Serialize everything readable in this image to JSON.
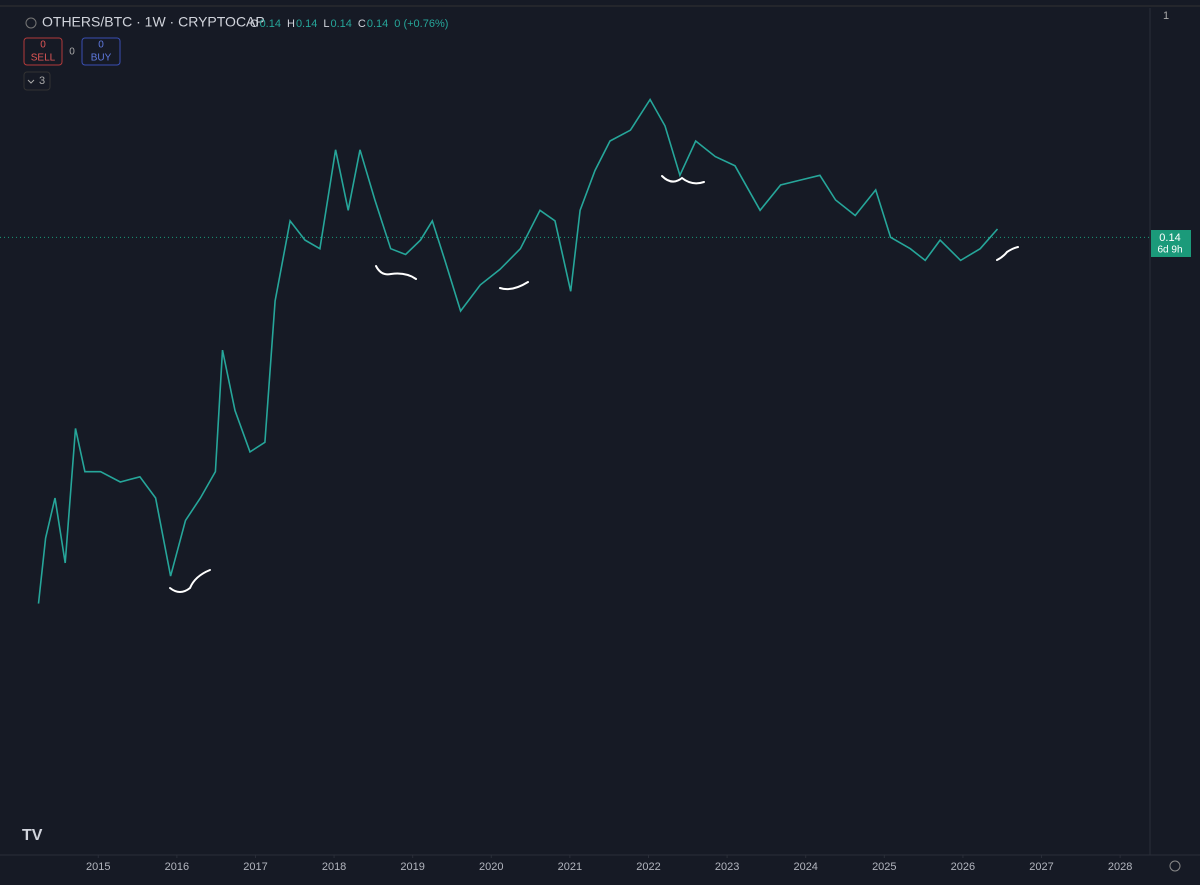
{
  "header": {
    "symbol": "OTHERS/BTC · 1W · CRYPTOCAP",
    "ohlc": [
      {
        "key": "O",
        "value": "0.14"
      },
      {
        "key": "H",
        "value": "0.14"
      },
      {
        "key": "L",
        "value": "0.14"
      },
      {
        "key": "C",
        "value": "0.14"
      }
    ],
    "change": "0 (+0.76%)"
  },
  "trade": {
    "sell_qty": "0",
    "sell": "SELL",
    "spread": "0",
    "buy_qty": "0",
    "buy": "BUY"
  },
  "indicators": "3",
  "corner": "1",
  "countdown": "6d 9h",
  "chart_data": {
    "type": "line",
    "log": true,
    "color": "#26a69a",
    "last_price": 0.14,
    "x": [
      2014.24,
      2014.33,
      2014.45,
      2014.58,
      2014.71,
      2014.83,
      2015.03,
      2015.28,
      2015.53,
      2015.73,
      2015.92,
      2016.11,
      2016.3,
      2016.49,
      2016.58,
      2016.74,
      2016.93,
      2017.12,
      2017.25,
      2017.44,
      2017.63,
      2017.82,
      2018.02,
      2018.18,
      2018.33,
      2018.52,
      2018.72,
      2018.91,
      2019.1,
      2019.25,
      2019.41,
      2019.61,
      2019.86,
      2020.11,
      2020.37,
      2020.62,
      2020.81,
      2021.01,
      2021.13,
      2021.32,
      2021.51,
      2021.77,
      2022.02,
      2022.21,
      2022.4,
      2022.6,
      2022.85,
      2023.1,
      2023.42,
      2023.68,
      2023.93,
      2024.18,
      2024.38,
      2024.63,
      2024.89,
      2025.08,
      2025.33,
      2025.52,
      2025.71,
      2025.97,
      2026.22,
      2026.44
    ],
    "values": [
      0.055,
      0.065,
      0.072,
      0.061,
      0.086,
      0.077,
      0.077,
      0.075,
      0.076,
      0.072,
      0.059,
      0.068,
      0.072,
      0.077,
      0.105,
      0.09,
      0.081,
      0.083,
      0.119,
      0.146,
      0.139,
      0.136,
      0.175,
      0.15,
      0.175,
      0.154,
      0.136,
      0.134,
      0.139,
      0.146,
      0.132,
      0.116,
      0.124,
      0.129,
      0.136,
      0.15,
      0.146,
      0.122,
      0.15,
      0.166,
      0.179,
      0.184,
      0.199,
      0.186,
      0.164,
      0.179,
      0.172,
      0.168,
      0.15,
      0.16,
      0.162,
      0.164,
      0.154,
      0.148,
      0.158,
      0.14,
      0.136,
      0.132,
      0.139,
      0.132,
      0.136,
      0.143
    ],
    "xlim": [
      2013.75,
      2028.38
    ],
    "xticks": [
      2015,
      2016,
      2017,
      2018,
      2019,
      2020,
      2021,
      2022,
      2023,
      2024,
      2025,
      2026,
      2027,
      2028
    ],
    "ylim": [
      0.0286,
      0.25
    ]
  }
}
